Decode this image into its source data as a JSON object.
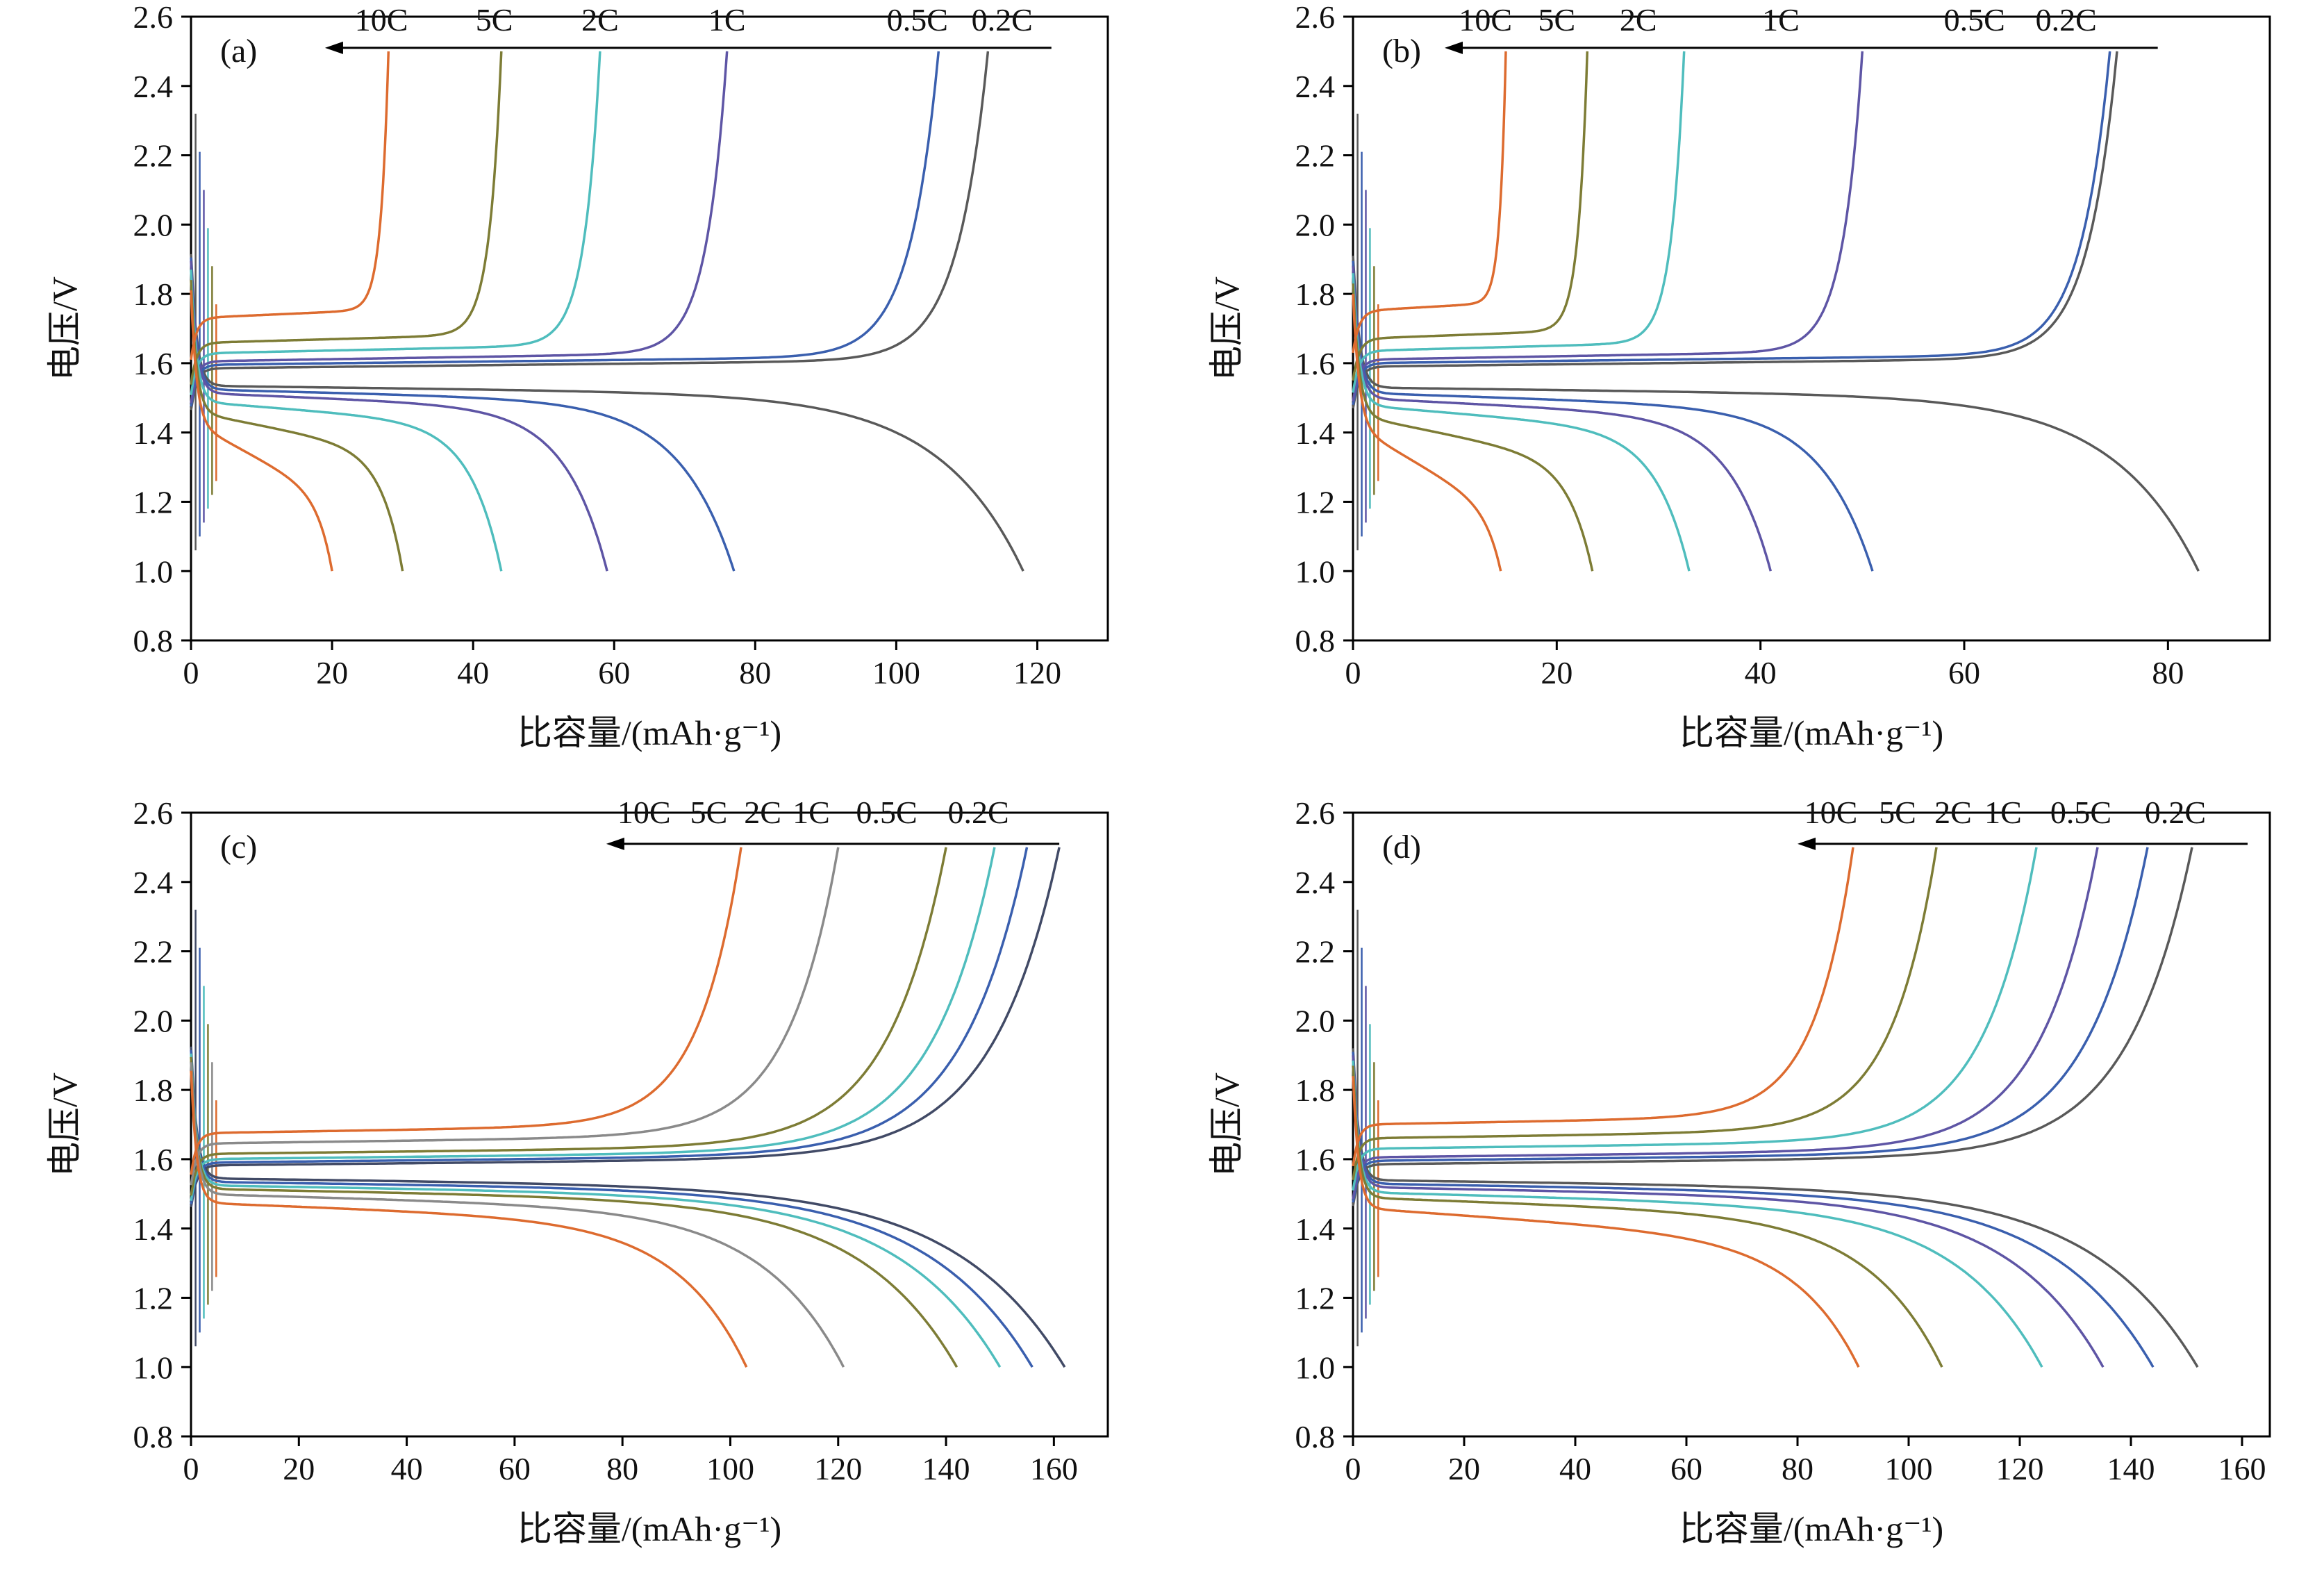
{
  "figure": {
    "background": "#ffffff",
    "xlabel": "比容量/(mAh·g⁻¹)",
    "ylabel": "电压/V",
    "rate_labels": [
      "10C",
      "5C",
      "2C",
      "1C",
      "0.5C",
      "0.2C"
    ]
  },
  "chart_data": [
    {
      "type": "line",
      "panel_label": "(a)",
      "xlabel": "比容量/(mAh·g⁻¹)",
      "ylabel": "电压/V",
      "xlim": [
        0,
        130
      ],
      "xticks": [
        0,
        20,
        40,
        60,
        80,
        100,
        120
      ],
      "ylim": [
        0.8,
        2.6
      ],
      "yticks": [
        0.8,
        1.0,
        1.2,
        1.4,
        1.6,
        1.8,
        2.0,
        2.2,
        2.4,
        2.6
      ],
      "grid": false,
      "charge_knee": 26,
      "discharge_knee": 10,
      "rate_annotation": {
        "labels": [
          "10C",
          "5C",
          "2C",
          "1C",
          "0.5C",
          "0.2C"
        ],
        "x": [
          27,
          43,
          58,
          76,
          103,
          115
        ],
        "y": 2.56,
        "arrow": {
          "from": 122,
          "to": 19,
          "y": 2.51
        }
      },
      "series": [
        {
          "name": "0.2C",
          "color": "#595959",
          "charge": {
            "capacity": 113,
            "plateau": 1.585
          },
          "discharge": {
            "capacity": 118,
            "plateau": 1.535,
            "slope": 0.03
          }
        },
        {
          "name": "0.5C",
          "color": "#3a5fae",
          "charge": {
            "capacity": 106,
            "plateau": 1.595
          },
          "discharge": {
            "capacity": 77,
            "plateau": 1.525,
            "slope": 0.04
          }
        },
        {
          "name": "1C",
          "color": "#5e55a5",
          "charge": {
            "capacity": 76,
            "plateau": 1.605
          },
          "discharge": {
            "capacity": 59,
            "plateau": 1.515,
            "slope": 0.05
          }
        },
        {
          "name": "2C",
          "color": "#4fbdbd",
          "charge": {
            "capacity": 58,
            "plateau": 1.628
          },
          "discharge": {
            "capacity": 44,
            "plateau": 1.49,
            "slope": 0.07
          }
        },
        {
          "name": "5C",
          "color": "#7d7c35",
          "charge": {
            "capacity": 44,
            "plateau": 1.658
          },
          "discharge": {
            "capacity": 30,
            "plateau": 1.46,
            "slope": 0.12
          }
        },
        {
          "name": "10C",
          "color": "#dd6b2f",
          "charge": {
            "capacity": 28,
            "plateau": 1.73
          },
          "discharge": {
            "capacity": 20,
            "plateau": 1.43,
            "slope": 0.22
          }
        }
      ]
    },
    {
      "type": "line",
      "panel_label": "(b)",
      "xlabel": "比容量/(mAh·g⁻¹)",
      "ylabel": "电压/V",
      "xlim": [
        0,
        90
      ],
      "xticks": [
        0,
        20,
        40,
        60,
        80
      ],
      "ylim": [
        0.8,
        2.6
      ],
      "yticks": [
        0.8,
        1.0,
        1.2,
        1.4,
        1.6,
        1.8,
        2.0,
        2.2,
        2.4,
        2.6
      ],
      "grid": false,
      "charge_knee": 26,
      "discharge_knee": 10,
      "rate_annotation": {
        "labels": [
          "10C",
          "5C",
          "2C",
          "1C",
          "0.5C",
          "0.2C"
        ],
        "x": [
          13,
          20,
          28,
          42,
          61,
          70
        ],
        "y": 2.56,
        "arrow": {
          "from": 79,
          "to": 9,
          "y": 2.51
        }
      },
      "series": [
        {
          "name": "0.2C",
          "color": "#595959",
          "charge": {
            "capacity": 75,
            "plateau": 1.59
          },
          "discharge": {
            "capacity": 83,
            "plateau": 1.53,
            "slope": 0.03
          }
        },
        {
          "name": "0.5C",
          "color": "#3a5fae",
          "charge": {
            "capacity": 74.3,
            "plateau": 1.6
          },
          "discharge": {
            "capacity": 51,
            "plateau": 1.515,
            "slope": 0.05
          }
        },
        {
          "name": "1C",
          "color": "#5e55a5",
          "charge": {
            "capacity": 50,
            "plateau": 1.61
          },
          "discharge": {
            "capacity": 41,
            "plateau": 1.5,
            "slope": 0.06
          }
        },
        {
          "name": "2C",
          "color": "#4fbdbd",
          "charge": {
            "capacity": 32.5,
            "plateau": 1.635
          },
          "discharge": {
            "capacity": 33,
            "plateau": 1.48,
            "slope": 0.08
          }
        },
        {
          "name": "5C",
          "color": "#7d7c35",
          "charge": {
            "capacity": 23,
            "plateau": 1.67
          },
          "discharge": {
            "capacity": 23.5,
            "plateau": 1.45,
            "slope": 0.14
          }
        },
        {
          "name": "10C",
          "color": "#dd6b2f",
          "charge": {
            "capacity": 15,
            "plateau": 1.75
          },
          "discharge": {
            "capacity": 14.5,
            "plateau": 1.42,
            "slope": 0.25
          }
        }
      ]
    },
    {
      "type": "line",
      "panel_label": "(c)",
      "xlabel": "比容量/(mAh·g⁻¹)",
      "ylabel": "电压/V",
      "xlim": [
        0,
        170
      ],
      "xticks": [
        0,
        20,
        40,
        60,
        80,
        100,
        120,
        140,
        160
      ],
      "ylim": [
        0.8,
        2.6
      ],
      "yticks": [
        0.8,
        1.0,
        1.2,
        1.4,
        1.6,
        1.8,
        2.0,
        2.2,
        2.4,
        2.6
      ],
      "grid": false,
      "charge_knee": 13,
      "discharge_knee": 8,
      "rate_annotation": {
        "labels": [
          "10C",
          "5C",
          "2C",
          "1C",
          "0.5C",
          "0.2C"
        ],
        "x": [
          84,
          96,
          106,
          115,
          129,
          146
        ],
        "y": 2.57,
        "arrow": {
          "from": 161,
          "to": 77,
          "y": 2.51
        }
      },
      "series": [
        {
          "name": "0.2C",
          "color": "#414a66",
          "charge": {
            "capacity": 161,
            "plateau": 1.582
          },
          "discharge": {
            "capacity": 162,
            "plateau": 1.545,
            "slope": 0.03
          }
        },
        {
          "name": "0.5C",
          "color": "#3a5fae",
          "charge": {
            "capacity": 155,
            "plateau": 1.59
          },
          "discharge": {
            "capacity": 156,
            "plateau": 1.535,
            "slope": 0.03
          }
        },
        {
          "name": "1C",
          "color": "#4fbdbd",
          "charge": {
            "capacity": 149,
            "plateau": 1.6
          },
          "discharge": {
            "capacity": 150,
            "plateau": 1.525,
            "slope": 0.035
          }
        },
        {
          "name": "2C",
          "color": "#7d7c35",
          "charge": {
            "capacity": 140,
            "plateau": 1.615
          },
          "discharge": {
            "capacity": 142,
            "plateau": 1.515,
            "slope": 0.04
          }
        },
        {
          "name": "5C",
          "color": "#8a8a8a",
          "charge": {
            "capacity": 120,
            "plateau": 1.645
          },
          "discharge": {
            "capacity": 121,
            "plateau": 1.5,
            "slope": 0.05
          }
        },
        {
          "name": "10C",
          "color": "#dd6b2f",
          "charge": {
            "capacity": 102,
            "plateau": 1.675
          },
          "discharge": {
            "capacity": 103,
            "plateau": 1.475,
            "slope": 0.06
          }
        }
      ]
    },
    {
      "type": "line",
      "panel_label": "(d)",
      "xlabel": "比容量/(mAh·g⁻¹)",
      "ylabel": "电压/V",
      "xlim": [
        0,
        165
      ],
      "xticks": [
        0,
        20,
        40,
        60,
        80,
        100,
        120,
        140,
        160
      ],
      "ylim": [
        0.8,
        2.6
      ],
      "yticks": [
        0.8,
        1.0,
        1.2,
        1.4,
        1.6,
        1.8,
        2.0,
        2.2,
        2.4,
        2.6
      ],
      "grid": false,
      "charge_knee": 13,
      "discharge_knee": 8,
      "rate_annotation": {
        "labels": [
          "10C",
          "5C",
          "2C",
          "1C",
          "0.5C",
          "0.2C"
        ],
        "x": [
          86,
          98,
          108,
          117,
          131,
          148
        ],
        "y": 2.57,
        "arrow": {
          "from": 161,
          "to": 80,
          "y": 2.51
        }
      },
      "series": [
        {
          "name": "0.2C",
          "color": "#595959",
          "charge": {
            "capacity": 151,
            "plateau": 1.585
          },
          "discharge": {
            "capacity": 152,
            "plateau": 1.54,
            "slope": 0.03
          }
        },
        {
          "name": "0.5C",
          "color": "#3a5fae",
          "charge": {
            "capacity": 143,
            "plateau": 1.595
          },
          "discharge": {
            "capacity": 144,
            "plateau": 1.53,
            "slope": 0.035
          }
        },
        {
          "name": "1C",
          "color": "#5e55a5",
          "charge": {
            "capacity": 134,
            "plateau": 1.605
          },
          "discharge": {
            "capacity": 135,
            "plateau": 1.52,
            "slope": 0.04
          }
        },
        {
          "name": "2C",
          "color": "#4fbdbd",
          "charge": {
            "capacity": 123,
            "plateau": 1.63
          },
          "discharge": {
            "capacity": 124,
            "plateau": 1.505,
            "slope": 0.05
          }
        },
        {
          "name": "5C",
          "color": "#7d7c35",
          "charge": {
            "capacity": 105,
            "plateau": 1.66
          },
          "discharge": {
            "capacity": 106,
            "plateau": 1.49,
            "slope": 0.06
          }
        },
        {
          "name": "10C",
          "color": "#dd6b2f",
          "charge": {
            "capacity": 90,
            "plateau": 1.7
          },
          "discharge": {
            "capacity": 91,
            "plateau": 1.46,
            "slope": 0.1
          }
        }
      ]
    }
  ]
}
